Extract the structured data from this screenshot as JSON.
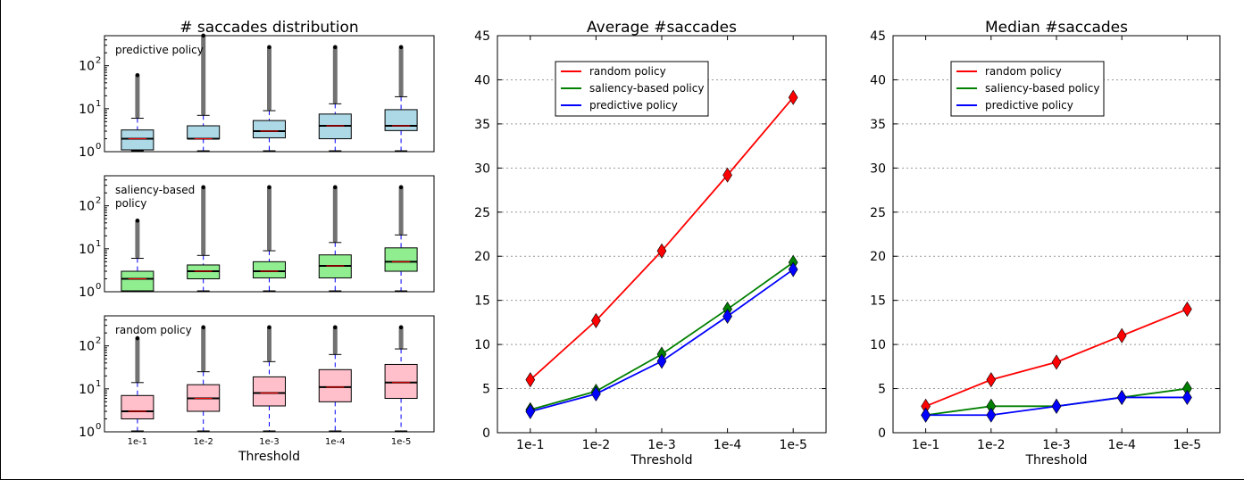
{
  "chart_data": [
    {
      "type": "boxplot",
      "title": "# saccades distribution",
      "xlabel": "Threshold",
      "categories": [
        "1e-1",
        "1e-2",
        "1e-3",
        "1e-4",
        "1e-5"
      ],
      "yscale": "log",
      "ylim": [
        1,
        500
      ],
      "yticks": [
        "10",
        "10",
        "10"
      ],
      "ytick_exponents": [
        "0",
        "1",
        "2"
      ],
      "panels": [
        {
          "label": "predictive policy",
          "color": "#add8e6",
          "boxes": [
            {
              "whisker_low": 1,
              "q1": 1.1,
              "median": 2,
              "q3": 3.2,
              "whisker_high": 6,
              "outliers_max": 60
            },
            {
              "whisker_low": 1,
              "q1": 2,
              "median": 2,
              "q3": 4,
              "whisker_high": 7,
              "outliers_max": 500
            },
            {
              "whisker_low": 1,
              "q1": 2.1,
              "median": 3,
              "q3": 5.3,
              "whisker_high": 9,
              "outliers_max": 270
            },
            {
              "whisker_low": 1,
              "q1": 2,
              "median": 4,
              "q3": 7.5,
              "whisker_high": 13,
              "outliers_max": 270
            },
            {
              "whisker_low": 1,
              "q1": 3.1,
              "median": 4,
              "q3": 9.5,
              "whisker_high": 19,
              "outliers_max": 270
            }
          ]
        },
        {
          "label": "saliency-based\npolicy",
          "color": "#90ee90",
          "boxes": [
            {
              "whisker_low": 1,
              "q1": 1.05,
              "median": 2,
              "q3": 3,
              "whisker_high": 6,
              "outliers_max": 45
            },
            {
              "whisker_low": 1,
              "q1": 2,
              "median": 3,
              "q3": 4.2,
              "whisker_high": 7,
              "outliers_max": 270
            },
            {
              "whisker_low": 1,
              "q1": 2.1,
              "median": 3,
              "q3": 5,
              "whisker_high": 9,
              "outliers_max": 270
            },
            {
              "whisker_low": 1,
              "q1": 2.1,
              "median": 4,
              "q3": 7.2,
              "whisker_high": 14,
              "outliers_max": 270
            },
            {
              "whisker_low": 1,
              "q1": 3,
              "median": 5,
              "q3": 10.5,
              "whisker_high": 21,
              "outliers_max": 270
            }
          ]
        },
        {
          "label": "random policy",
          "color": "#ffc0cb",
          "boxes": [
            {
              "whisker_low": 1,
              "q1": 2,
              "median": 3,
              "q3": 7,
              "whisker_high": 14,
              "outliers_max": 150
            },
            {
              "whisker_low": 1,
              "q1": 3,
              "median": 6,
              "q3": 12.5,
              "whisker_high": 25,
              "outliers_max": 270
            },
            {
              "whisker_low": 1,
              "q1": 4,
              "median": 8,
              "q3": 19,
              "whisker_high": 43,
              "outliers_max": 270
            },
            {
              "whisker_low": 1,
              "q1": 5,
              "median": 11,
              "q3": 28,
              "whisker_high": 63,
              "outliers_max": 270
            },
            {
              "whisker_low": 1,
              "q1": 6,
              "median": 14,
              "q3": 37,
              "whisker_high": 85,
              "outliers_max": 270
            }
          ]
        }
      ]
    },
    {
      "type": "line",
      "title": "Average #saccades",
      "xlabel": "Threshold",
      "categories": [
        "1e-1",
        "1e-2",
        "1e-3",
        "1e-4",
        "1e-5"
      ],
      "ylim": [
        0,
        45
      ],
      "yticks": [
        0,
        5,
        10,
        15,
        20,
        25,
        30,
        35,
        40,
        45
      ],
      "grid": true,
      "legend_position": "upper-left",
      "series": [
        {
          "name": "random policy",
          "color": "#ff0000",
          "values": [
            6,
            12.7,
            20.6,
            29.2,
            38
          ]
        },
        {
          "name": "saliency-based policy",
          "color": "#008000",
          "values": [
            2.6,
            4.7,
            8.9,
            14,
            19.3
          ]
        },
        {
          "name": "predictive policy",
          "color": "#0000ff",
          "values": [
            2.4,
            4.4,
            8.1,
            13.2,
            18.5
          ]
        }
      ]
    },
    {
      "type": "line",
      "title": "Median #saccades",
      "xlabel": "Threshold",
      "categories": [
        "1e-1",
        "1e-2",
        "1e-3",
        "1e-4",
        "1e-5"
      ],
      "ylim": [
        0,
        45
      ],
      "yticks": [
        0,
        5,
        10,
        15,
        20,
        25,
        30,
        35,
        40,
        45
      ],
      "grid": true,
      "legend_position": "upper-left",
      "series": [
        {
          "name": "random policy",
          "color": "#ff0000",
          "values": [
            3,
            6,
            8,
            11,
            14
          ]
        },
        {
          "name": "saliency-based policy",
          "color": "#008000",
          "values": [
            2,
            3,
            3,
            4,
            5
          ]
        },
        {
          "name": "predictive policy",
          "color": "#0000ff",
          "values": [
            2,
            2,
            3,
            4,
            4
          ]
        }
      ]
    }
  ]
}
